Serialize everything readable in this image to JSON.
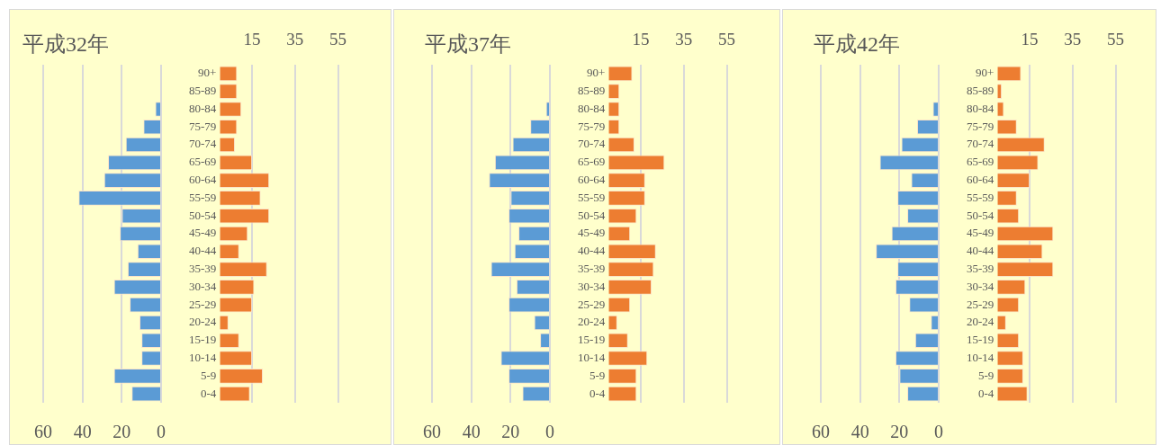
{
  "chart_data": [
    {
      "type": "bar",
      "orientation": "horizontal",
      "title": "平成32年",
      "grid": "x",
      "tick_labels": "x",
      "categories": [
        null,
        null,
        null,
        null,
        null,
        null,
        null,
        null,
        null,
        null,
        null,
        null,
        null,
        null,
        null,
        null,
        null,
        null,
        null
      ],
      "color": "#5b9bd5",
      "values": [
        0,
        0,
        3,
        9,
        18,
        27,
        29,
        42,
        20,
        21,
        12,
        17,
        24,
        16,
        11,
        10,
        10,
        24,
        15
      ],
      "xlim": [
        60,
        0
      ],
      "xticks": [
        60,
        40,
        20,
        0
      ]
    },
    {
      "type": "bar",
      "orientation": "horizontal",
      "categories": [
        "90+",
        "85-89",
        "80-84",
        "75-79",
        "70-74",
        "65-69",
        "60-64",
        "55-59",
        "50-54",
        "45-49",
        "40-44",
        "35-39",
        "30-34",
        "25-29",
        "20-24",
        "15-19",
        "10-14",
        "5-9",
        "0-4"
      ],
      "series": [
        {
          "color": "#ed7d31",
          "axis": "x2",
          "values": [
            8,
            8,
            10,
            8,
            7,
            15,
            23,
            19,
            23,
            13,
            9,
            22,
            16,
            15,
            4,
            9,
            15,
            20,
            14
          ]
        }
      ],
      "x2lim": [
        0,
        55
      ],
      "x2ticks": [
        15,
        35,
        55
      ],
      "grid": "x"
    },
    {
      "type": "bar",
      "orientation": "horizontal",
      "title": "平成37年",
      "grid": "x",
      "tick_labels": "x",
      "categories": [
        null,
        null,
        null,
        null,
        null,
        null,
        null,
        null,
        null,
        null,
        null,
        null,
        null,
        null,
        null,
        null,
        null,
        null,
        null
      ],
      "color": "#5b9bd5",
      "values": [
        0,
        0,
        2,
        10,
        19,
        28,
        31,
        20,
        21,
        16,
        18,
        30,
        17,
        21,
        8,
        5,
        25,
        21,
        14
      ],
      "xlim": [
        60,
        0
      ],
      "xticks": [
        60,
        40,
        20,
        0
      ]
    },
    {
      "type": "bar",
      "orientation": "horizontal",
      "categories": [
        "90+",
        "85-89",
        "80-84",
        "75-79",
        "70-74",
        "65-69",
        "60-64",
        "55-59",
        "50-54",
        "45-49",
        "40-44",
        "35-39",
        "30-34",
        "25-29",
        "20-24",
        "15-19",
        "10-14",
        "5-9",
        "0-4"
      ],
      "series": [
        {
          "color": "#ed7d31",
          "axis": "x2",
          "values": [
            11,
            5,
            5,
            5,
            12,
            26,
            17,
            17,
            13,
            10,
            22,
            21,
            20,
            10,
            4,
            9,
            18,
            13,
            13
          ]
        }
      ],
      "x2lim": [
        0,
        55
      ],
      "x2ticks": [
        15,
        35,
        55
      ],
      "grid": "x"
    },
    {
      "type": "bar",
      "orientation": "horizontal",
      "title": "平成42年",
      "grid": "x",
      "tick_labels": "x",
      "categories": [
        null,
        null,
        null,
        null,
        null,
        null,
        null,
        null,
        null,
        null,
        null,
        null,
        null,
        null,
        null,
        null,
        null,
        null,
        null
      ],
      "color": "#5b9bd5",
      "values": [
        0,
        0,
        3,
        11,
        19,
        30,
        14,
        21,
        16,
        24,
        32,
        21,
        22,
        15,
        4,
        12,
        22,
        20,
        16
      ],
      "xlim": [
        60,
        0
      ],
      "xticks": [
        60,
        40,
        20,
        0
      ]
    },
    {
      "type": "bar",
      "orientation": "horizontal",
      "categories": [
        "90+",
        "85-89",
        "80-84",
        "75-79",
        "70-74",
        "65-69",
        "60-64",
        "55-59",
        "50-54",
        "45-49",
        "40-44",
        "35-39",
        "30-34",
        "25-29",
        "20-24",
        "15-19",
        "10-14",
        "5-9",
        "0-4"
      ],
      "series": [
        {
          "color": "#ed7d31",
          "axis": "x2",
          "values": [
            11,
            2,
            3,
            9,
            22,
            19,
            15,
            9,
            10,
            26,
            21,
            26,
            13,
            10,
            4,
            10,
            12,
            12,
            14
          ]
        }
      ],
      "x2lim": [
        0,
        55
      ],
      "x2ticks": [
        15,
        35,
        55
      ],
      "grid": "x"
    }
  ]
}
